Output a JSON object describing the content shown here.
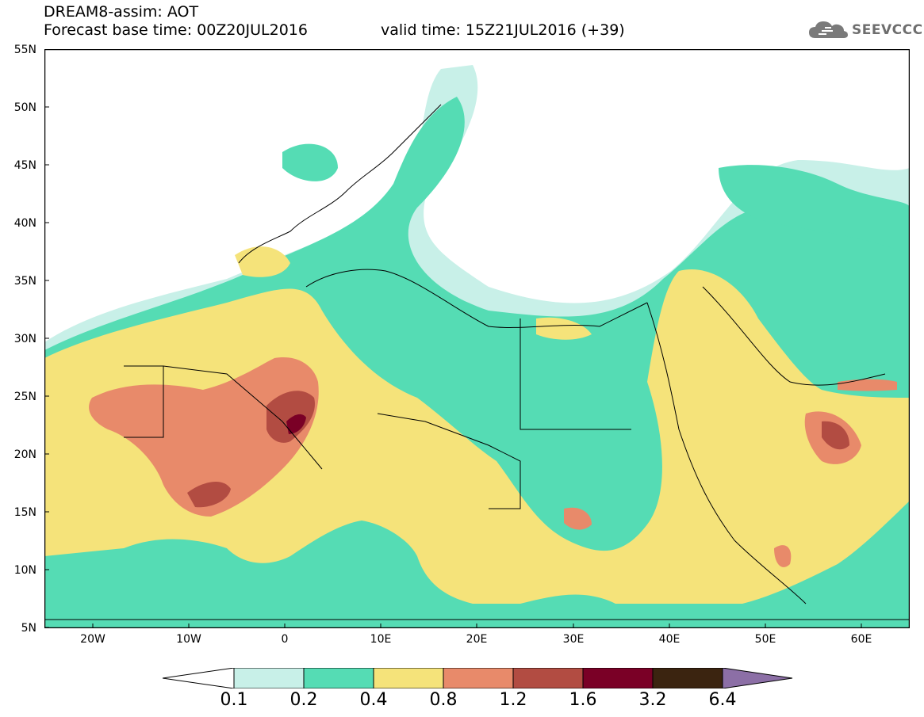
{
  "header": {
    "title": "DREAM8-assim: AOT",
    "base_time": "Forecast base time: 00Z20JUL2016",
    "valid_time": "valid time: 15Z21JUL2016 (+39)",
    "logo_text": "SEEVCCC"
  },
  "map": {
    "lon_range": [
      -25,
      65
    ],
    "lat_range": [
      5,
      55
    ],
    "y_axis_labels": [
      "55N",
      "50N",
      "45N",
      "40N",
      "35N",
      "30N",
      "25N",
      "20N",
      "15N",
      "10N",
      "5N"
    ],
    "x_axis_labels": [
      "20W",
      "10W",
      "0",
      "10E",
      "20E",
      "30E",
      "40E",
      "50E",
      "60E"
    ],
    "variable": "Aerosol Optical Thickness"
  },
  "colorbar": {
    "thresholds": [
      "0.1",
      "0.2",
      "0.4",
      "0.8",
      "1.2",
      "1.6",
      "3.2",
      "6.4"
    ],
    "colors": [
      "#c8f0e8",
      "#55dcb4",
      "#f5e37a",
      "#e88a6a",
      "#b24c42",
      "#7a0026",
      "#3b2410",
      "#8c6fa6"
    ]
  }
}
